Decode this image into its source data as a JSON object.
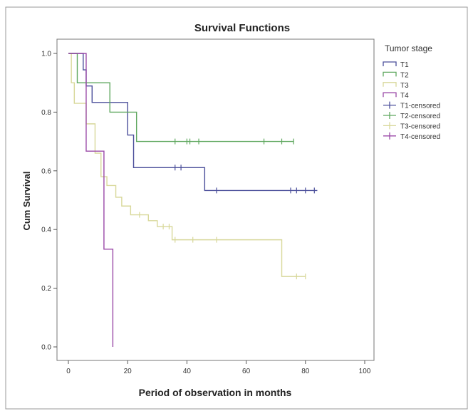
{
  "chart_data": {
    "type": "line",
    "subtype": "kaplan-meier step",
    "title": "Survival Functions",
    "xlabel": "Period of observation in months",
    "ylabel": "Cum Survival",
    "xlim": [
      0,
      100
    ],
    "ylim": [
      0.0,
      1.0
    ],
    "xticks": [
      0,
      20,
      40,
      60,
      80,
      100
    ],
    "yticks": [
      0.0,
      0.2,
      0.4,
      0.6,
      0.8,
      1.0
    ],
    "xtick_labels": [
      "0",
      "20",
      "40",
      "60",
      "80",
      "100"
    ],
    "ytick_labels": [
      "0.0",
      "0.2",
      "0.4",
      "0.6",
      "0.8",
      "1.0"
    ],
    "grid": false,
    "legend_title": "Tumor stage",
    "legend_position": "right",
    "legend": [
      "T1",
      "T2",
      "T3",
      "T4",
      "T1-censored",
      "T2-censored",
      "T3-censored",
      "T4-censored"
    ],
    "series": [
      {
        "name": "T1",
        "color": "#4a4e9a",
        "steps": [
          [
            0,
            1.0
          ],
          [
            5,
            0.944
          ],
          [
            6,
            0.889
          ],
          [
            8,
            0.833
          ],
          [
            20,
            0.722
          ],
          [
            22,
            0.611
          ],
          [
            46,
            0.533
          ],
          [
            84,
            0.533
          ]
        ],
        "censored": [
          [
            36,
            0.611
          ],
          [
            38,
            0.611
          ],
          [
            50,
            0.533
          ],
          [
            75,
            0.533
          ],
          [
            77,
            0.533
          ],
          [
            80,
            0.533
          ],
          [
            83,
            0.533
          ]
        ]
      },
      {
        "name": "T2",
        "color": "#5fa85f",
        "steps": [
          [
            0,
            1.0
          ],
          [
            3,
            0.9
          ],
          [
            14,
            0.8
          ],
          [
            23,
            0.7
          ],
          [
            76,
            0.7
          ]
        ],
        "censored": [
          [
            36,
            0.7
          ],
          [
            40,
            0.7
          ],
          [
            41,
            0.7
          ],
          [
            44,
            0.7
          ],
          [
            66,
            0.7
          ],
          [
            72,
            0.7
          ],
          [
            76,
            0.7
          ]
        ]
      },
      {
        "name": "T3",
        "color": "#d8d89a",
        "steps": [
          [
            0,
            1.0
          ],
          [
            1,
            0.9
          ],
          [
            2,
            0.83
          ],
          [
            6,
            0.76
          ],
          [
            9,
            0.66
          ],
          [
            11,
            0.58
          ],
          [
            13,
            0.55
          ],
          [
            16,
            0.51
          ],
          [
            18,
            0.48
          ],
          [
            21,
            0.45
          ],
          [
            27,
            0.43
          ],
          [
            30,
            0.41
          ],
          [
            35,
            0.365
          ],
          [
            72,
            0.24
          ],
          [
            80,
            0.24
          ]
        ],
        "censored": [
          [
            24,
            0.45
          ],
          [
            32,
            0.41
          ],
          [
            34,
            0.41
          ],
          [
            36,
            0.365
          ],
          [
            42,
            0.365
          ],
          [
            50,
            0.365
          ],
          [
            77,
            0.24
          ],
          [
            80,
            0.24
          ]
        ]
      },
      {
        "name": "T4",
        "color": "#9b4aa8",
        "steps": [
          [
            0,
            1.0
          ],
          [
            6,
            0.667
          ],
          [
            12,
            0.333
          ],
          [
            15,
            0.0
          ]
        ],
        "censored": []
      }
    ]
  }
}
